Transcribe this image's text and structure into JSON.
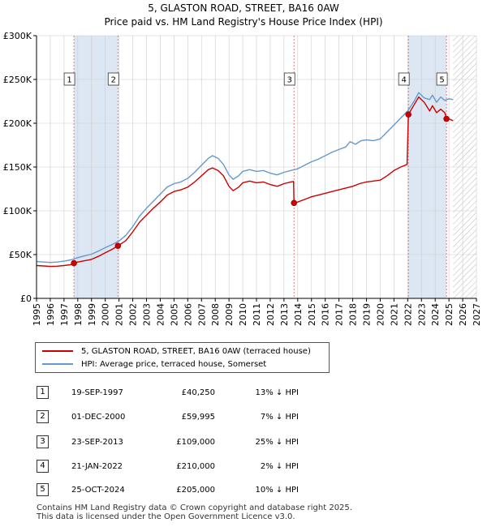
{
  "title_line1": "5, GLASTON ROAD, STREET, BA16 0AW",
  "title_line2": "Price paid vs. HM Land Registry's House Price Index (HPI)",
  "colors": {
    "property": "#cc0000",
    "hpi": "#6699cc",
    "highlight_band": "#dde6f3",
    "marker_line": "#e06060",
    "grid": "#cccccc",
    "axis": "#000000"
  },
  "chart_data": {
    "type": "line",
    "title": "5, GLASTON ROAD, STREET, BA16 0AW",
    "subtitle": "Price paid vs. HM Land Registry's House Price Index (HPI)",
    "xlabel": "",
    "ylabel": "",
    "xlim": [
      1995,
      2027
    ],
    "ylim": [
      0,
      300000
    ],
    "grid": true,
    "legend_position": "bottom-left",
    "y_ticks": [
      {
        "value": 0,
        "label": "£0"
      },
      {
        "value": 50000,
        "label": "£50K"
      },
      {
        "value": 100000,
        "label": "£100K"
      },
      {
        "value": 150000,
        "label": "£150K"
      },
      {
        "value": 200000,
        "label": "£200K"
      },
      {
        "value": 250000,
        "label": "£250K"
      },
      {
        "value": 300000,
        "label": "£300K"
      }
    ],
    "x_ticks": [
      1995,
      1996,
      1997,
      1998,
      1999,
      2000,
      2001,
      2002,
      2003,
      2004,
      2005,
      2006,
      2007,
      2008,
      2009,
      2010,
      2011,
      2012,
      2013,
      2014,
      2015,
      2016,
      2017,
      2018,
      2019,
      2020,
      2021,
      2022,
      2023,
      2024,
      2025,
      2026,
      2027
    ],
    "forecast_from": 2025.3,
    "series": [
      {
        "name": "5, GLASTON ROAD, STREET, BA16 0AW (terraced house)",
        "color": "#cc0000",
        "points": [
          [
            1995.0,
            37500
          ],
          [
            1995.5,
            37000
          ],
          [
            1996.0,
            36500
          ],
          [
            1996.5,
            36800
          ],
          [
            1997.0,
            37500
          ],
          [
            1997.5,
            38500
          ],
          [
            1997.72,
            40250
          ],
          [
            1998.0,
            41500
          ],
          [
            1998.5,
            43000
          ],
          [
            1999.0,
            44500
          ],
          [
            1999.5,
            48000
          ],
          [
            2000.0,
            52000
          ],
          [
            2000.5,
            56000
          ],
          [
            2000.92,
            59995
          ],
          [
            2001.5,
            66000
          ],
          [
            2002.0,
            76000
          ],
          [
            2002.5,
            87000
          ],
          [
            2003.0,
            95000
          ],
          [
            2003.5,
            103000
          ],
          [
            2004.0,
            110000
          ],
          [
            2004.5,
            118000
          ],
          [
            2005.0,
            122000
          ],
          [
            2005.5,
            124000
          ],
          [
            2006.0,
            127000
          ],
          [
            2006.5,
            133000
          ],
          [
            2007.0,
            140000
          ],
          [
            2007.5,
            147000
          ],
          [
            2007.8,
            149000
          ],
          [
            2008.2,
            146000
          ],
          [
            2008.6,
            140000
          ],
          [
            2009.0,
            128000
          ],
          [
            2009.3,
            123000
          ],
          [
            2009.7,
            127000
          ],
          [
            2010.0,
            132000
          ],
          [
            2010.5,
            134000
          ],
          [
            2011.0,
            132000
          ],
          [
            2011.5,
            133000
          ],
          [
            2012.0,
            130000
          ],
          [
            2012.5,
            128000
          ],
          [
            2013.0,
            131000
          ],
          [
            2013.5,
            133000
          ],
          [
            2013.7,
            133500
          ],
          [
            2013.73,
            109000
          ],
          [
            2014.0,
            110000
          ],
          [
            2014.5,
            113000
          ],
          [
            2015.0,
            116000
          ],
          [
            2015.5,
            118000
          ],
          [
            2016.0,
            120000
          ],
          [
            2016.5,
            122000
          ],
          [
            2017.0,
            124000
          ],
          [
            2017.5,
            126000
          ],
          [
            2018.0,
            128000
          ],
          [
            2018.5,
            131000
          ],
          [
            2019.0,
            133000
          ],
          [
            2019.5,
            134000
          ],
          [
            2020.0,
            135000
          ],
          [
            2020.5,
            140000
          ],
          [
            2021.0,
            146000
          ],
          [
            2021.5,
            150000
          ],
          [
            2021.95,
            153000
          ],
          [
            2022.05,
            210000
          ],
          [
            2022.5,
            222000
          ],
          [
            2022.8,
            230000
          ],
          [
            2023.2,
            224000
          ],
          [
            2023.6,
            214000
          ],
          [
            2023.8,
            220000
          ],
          [
            2024.1,
            212000
          ],
          [
            2024.4,
            216000
          ],
          [
            2024.7,
            212000
          ],
          [
            2024.82,
            205000
          ],
          [
            2025.0,
            205000
          ],
          [
            2025.3,
            203000
          ]
        ]
      },
      {
        "name": "HPI: Average price, terraced house, Somerset",
        "color": "#6699cc",
        "points": [
          [
            1995.0,
            42000
          ],
          [
            1995.5,
            41500
          ],
          [
            1996.0,
            41000
          ],
          [
            1996.5,
            41500
          ],
          [
            1997.0,
            42500
          ],
          [
            1997.5,
            44000
          ],
          [
            1998.0,
            46500
          ],
          [
            1998.5,
            48500
          ],
          [
            1999.0,
            50500
          ],
          [
            1999.5,
            54000
          ],
          [
            2000.0,
            58000
          ],
          [
            2000.5,
            61500
          ],
          [
            2001.0,
            65500
          ],
          [
            2001.5,
            72000
          ],
          [
            2002.0,
            82000
          ],
          [
            2002.5,
            94000
          ],
          [
            2003.0,
            103000
          ],
          [
            2003.5,
            111000
          ],
          [
            2004.0,
            119000
          ],
          [
            2004.5,
            127000
          ],
          [
            2005.0,
            131000
          ],
          [
            2005.5,
            133000
          ],
          [
            2006.0,
            137000
          ],
          [
            2006.5,
            144000
          ],
          [
            2007.0,
            152000
          ],
          [
            2007.5,
            160000
          ],
          [
            2007.8,
            163000
          ],
          [
            2008.2,
            160000
          ],
          [
            2008.6,
            153000
          ],
          [
            2009.0,
            141000
          ],
          [
            2009.3,
            136000
          ],
          [
            2009.7,
            140000
          ],
          [
            2010.0,
            145000
          ],
          [
            2010.5,
            147000
          ],
          [
            2011.0,
            145000
          ],
          [
            2011.5,
            146000
          ],
          [
            2012.0,
            143000
          ],
          [
            2012.5,
            141000
          ],
          [
            2013.0,
            144000
          ],
          [
            2013.5,
            146000
          ],
          [
            2014.0,
            148000
          ],
          [
            2014.5,
            152000
          ],
          [
            2015.0,
            156000
          ],
          [
            2015.5,
            159000
          ],
          [
            2016.0,
            163000
          ],
          [
            2016.5,
            167000
          ],
          [
            2017.0,
            170000
          ],
          [
            2017.5,
            173000
          ],
          [
            2017.8,
            179000
          ],
          [
            2018.2,
            176000
          ],
          [
            2018.6,
            180000
          ],
          [
            2019.0,
            181000
          ],
          [
            2019.5,
            180000
          ],
          [
            2020.0,
            182000
          ],
          [
            2020.5,
            190000
          ],
          [
            2021.0,
            198000
          ],
          [
            2021.5,
            206000
          ],
          [
            2022.0,
            214000
          ],
          [
            2022.5,
            226000
          ],
          [
            2022.8,
            235000
          ],
          [
            2023.2,
            229000
          ],
          [
            2023.6,
            227000
          ],
          [
            2023.8,
            232000
          ],
          [
            2024.1,
            224000
          ],
          [
            2024.4,
            230000
          ],
          [
            2024.7,
            226000
          ],
          [
            2025.0,
            228000
          ],
          [
            2025.3,
            227000
          ]
        ]
      }
    ],
    "sales": [
      {
        "label": "1",
        "x": 1997.72,
        "y": 40250
      },
      {
        "label": "2",
        "x": 2000.92,
        "y": 59995
      },
      {
        "label": "3",
        "x": 2013.73,
        "y": 109000
      },
      {
        "label": "4",
        "x": 2022.05,
        "y": 210000
      },
      {
        "label": "5",
        "x": 2024.82,
        "y": 205000
      }
    ]
  },
  "legend": [
    {
      "label": "5, GLASTON ROAD, STREET, BA16 0AW (terraced house)",
      "color": "#cc0000"
    },
    {
      "label": "HPI: Average price, terraced house, Somerset",
      "color": "#6699cc"
    }
  ],
  "transactions": [
    {
      "num": "1",
      "date": "19-SEP-1997",
      "price": "£40,250",
      "hpi": "13% ↓ HPI"
    },
    {
      "num": "2",
      "date": "01-DEC-2000",
      "price": "£59,995",
      "hpi": "7% ↓ HPI"
    },
    {
      "num": "3",
      "date": "23-SEP-2013",
      "price": "£109,000",
      "hpi": "25% ↓ HPI"
    },
    {
      "num": "4",
      "date": "21-JAN-2022",
      "price": "£210,000",
      "hpi": "2% ↓ HPI"
    },
    {
      "num": "5",
      "date": "25-OCT-2024",
      "price": "£205,000",
      "hpi": "10% ↓ HPI"
    }
  ],
  "footer_line1": "Contains HM Land Registry data © Crown copyright and database right 2025.",
  "footer_line2": "This data is licensed under the Open Government Licence v3.0."
}
